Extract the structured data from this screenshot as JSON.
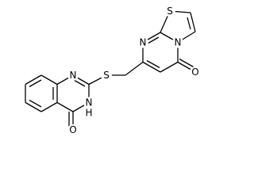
{
  "atoms": [
    {
      "label": "S"
    },
    {
      "label": "N"
    },
    {
      "label": "N"
    },
    {
      "label": "O"
    },
    {
      "label": "S"
    },
    {
      "label": "N"
    },
    {
      "label": "N",
      "h": "H"
    },
    {
      "label": "O"
    }
  ]
}
